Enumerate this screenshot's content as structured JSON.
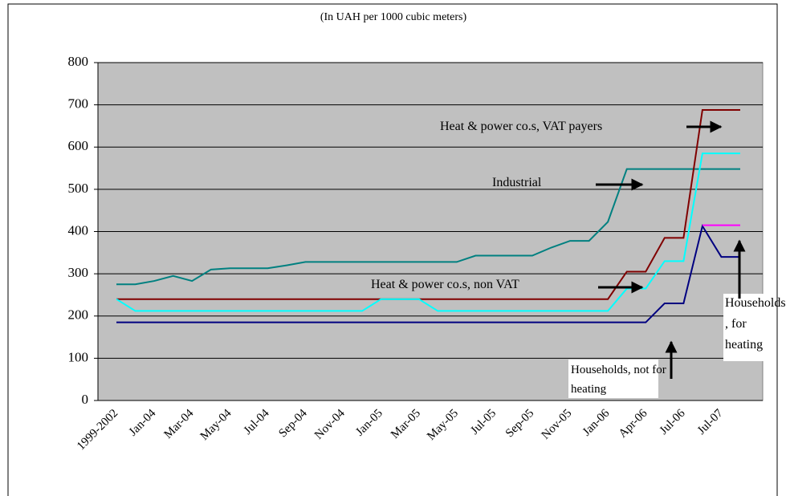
{
  "chart_data": {
    "type": "line",
    "subtitle": "(In UAH per 1000 cubic meters)",
    "categories": [
      "1999-2002",
      null,
      "Jan-04",
      null,
      "Mar-04",
      null,
      "May-04",
      null,
      "Jul-04",
      null,
      "Sep-04",
      null,
      "Nov-04",
      null,
      "Jan-05",
      null,
      "Mar-05",
      null,
      "May-05",
      null,
      "Jul-05",
      null,
      "Sep-05",
      null,
      "Nov-05",
      null,
      "Jan-06",
      null,
      "Apr-06",
      null,
      "Jul-06",
      null,
      "Jul-07",
      null
    ],
    "series": [
      {
        "name": "Industrial",
        "color": "#008080",
        "values": [
          275,
          275,
          283,
          295,
          283,
          310,
          313,
          313,
          313,
          320,
          328,
          328,
          328,
          328,
          328,
          328,
          328,
          328,
          328,
          343,
          343,
          343,
          343,
          362,
          378,
          378,
          423,
          548,
          548,
          548,
          548,
          548,
          548,
          548
        ]
      },
      {
        "name": "Heat & power co.s, VAT payers",
        "color": "#800000",
        "values": [
          240,
          240,
          240,
          240,
          240,
          240,
          240,
          240,
          240,
          240,
          240,
          240,
          240,
          240,
          240,
          240,
          240,
          240,
          240,
          240,
          240,
          240,
          240,
          240,
          240,
          240,
          240,
          305,
          305,
          385,
          385,
          688,
          688,
          688
        ]
      },
      {
        "name": "Heat & power co.s, non VAT",
        "color": "#00ffff",
        "values": [
          240,
          212,
          212,
          212,
          212,
          212,
          212,
          212,
          212,
          212,
          212,
          212,
          212,
          212,
          240,
          240,
          240,
          212,
          212,
          212,
          212,
          212,
          212,
          212,
          212,
          212,
          212,
          265,
          265,
          330,
          330,
          585,
          585,
          585
        ]
      },
      {
        "name": "Households, not for heating",
        "color": "#000080",
        "values": [
          185,
          185,
          185,
          185,
          185,
          185,
          185,
          185,
          185,
          185,
          185,
          185,
          185,
          185,
          185,
          185,
          185,
          185,
          185,
          185,
          185,
          185,
          185,
          185,
          185,
          185,
          185,
          185,
          185,
          230,
          230,
          413,
          340,
          340
        ]
      },
      {
        "name": "Households, for heating",
        "color": "#ff00ff",
        "values": [
          null,
          null,
          null,
          null,
          null,
          null,
          null,
          null,
          null,
          null,
          null,
          null,
          null,
          null,
          null,
          null,
          null,
          null,
          null,
          null,
          null,
          null,
          null,
          null,
          null,
          null,
          null,
          null,
          null,
          null,
          null,
          415,
          415,
          415
        ]
      }
    ],
    "annotations": [
      {
        "text": [
          "Heat & power co.s, VAT payers"
        ]
      },
      {
        "text": [
          "Industrial"
        ]
      },
      {
        "text": [
          "Heat & power co.s, non VAT"
        ]
      },
      {
        "text": [
          "Households",
          ", for",
          "heating"
        ]
      },
      {
        "text": [
          "Households, not for",
          "heating"
        ]
      }
    ],
    "ylim": [
      0,
      800
    ],
    "yticks": [
      0,
      100,
      200,
      300,
      400,
      500,
      600,
      700,
      800
    ],
    "grid": true
  }
}
